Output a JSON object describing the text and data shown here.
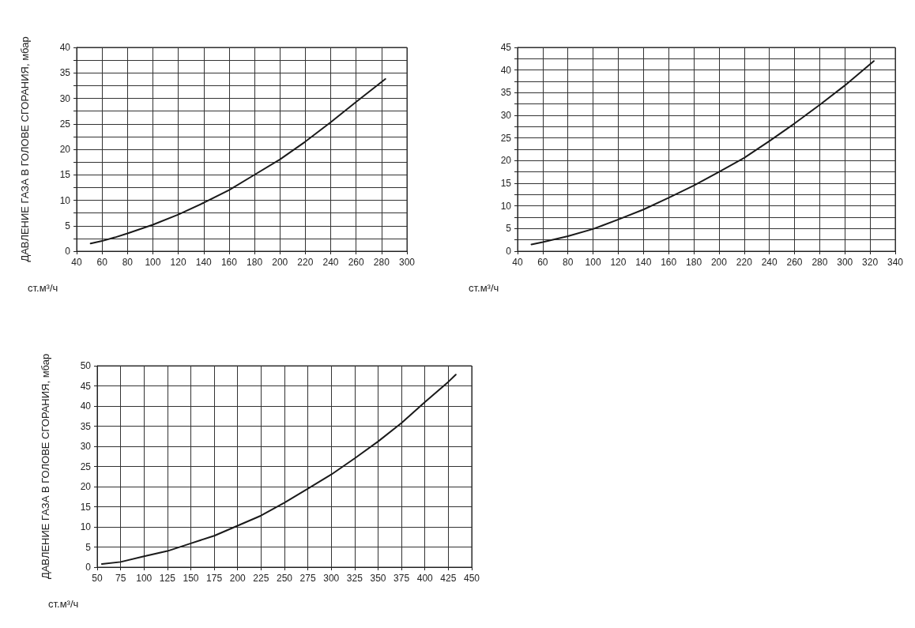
{
  "chart_data": [
    {
      "type": "line",
      "ylabel": "ДАВЛЕНИЕ ГАЗА В ГОЛОВЕ СГОРАНИЯ, мбар",
      "xlabel": "ст.м³/ч",
      "grid": true,
      "marker": "none",
      "line_style": "solid",
      "x": [
        51,
        60,
        70,
        80,
        100,
        120,
        140,
        160,
        180,
        200,
        220,
        240,
        260,
        283
      ],
      "series": [
        {
          "color": "#1a1a1a",
          "values": [
            1.5,
            2,
            2.7,
            3.5,
            5.2,
            7.2,
            9.5,
            12,
            15,
            18,
            21.5,
            25.3,
            29.3,
            33.8
          ]
        }
      ],
      "xlim": [
        40,
        300
      ],
      "xticks": [
        40,
        60,
        80,
        100,
        120,
        140,
        160,
        180,
        200,
        220,
        240,
        260,
        280,
        300
      ],
      "ylim": [
        0,
        40
      ],
      "yticks": [
        0,
        {
          "value": 2.5,
          "label": null
        },
        5,
        {
          "value": 7.5,
          "label": null
        },
        10,
        {
          "value": 12.5,
          "label": null
        },
        15,
        {
          "value": 17.5,
          "label": null
        },
        20,
        {
          "value": 22.5,
          "label": null
        },
        25,
        {
          "value": 27.5,
          "label": null
        },
        30,
        {
          "value": 32.5,
          "label": null
        },
        35,
        {
          "value": 37.5,
          "label": null
        },
        40
      ]
    },
    {
      "type": "line",
      "xlabel": "ст.м³/ч",
      "grid": true,
      "marker": "none",
      "line_style": "solid",
      "x": [
        51,
        60,
        80,
        100,
        120,
        140,
        160,
        180,
        200,
        220,
        240,
        260,
        280,
        300,
        323
      ],
      "series": [
        {
          "color": "#1a1a1a",
          "values": [
            1.5,
            2,
            3.3,
            4.9,
            7,
            9.2,
            11.8,
            14.5,
            17.5,
            20.6,
            24.3,
            28.2,
            32.3,
            36.6,
            42
          ]
        }
      ],
      "xlim": [
        40,
        340
      ],
      "xticks": [
        40,
        60,
        80,
        100,
        120,
        140,
        160,
        180,
        200,
        220,
        240,
        260,
        280,
        300,
        320,
        340
      ],
      "ylim": [
        0,
        45
      ],
      "yticks": [
        0,
        {
          "value": 2.5,
          "label": null
        },
        5,
        {
          "value": 7.5,
          "label": null
        },
        10,
        {
          "value": 12.5,
          "label": null
        },
        15,
        {
          "value": 17.5,
          "label": null
        },
        20,
        {
          "value": 22.5,
          "label": null
        },
        25,
        {
          "value": 27.5,
          "label": null
        },
        30,
        {
          "value": 32.5,
          "label": null
        },
        35,
        {
          "value": 37.5,
          "label": null
        },
        40,
        {
          "value": 42.5,
          "label": null
        },
        45
      ]
    },
    {
      "type": "line",
      "ylabel": "ДАВЛЕНИЕ ГАЗА В ГОЛОВЕ СГОРАНИЯ, мбар",
      "xlabel": "ст.м³/ч",
      "grid": true,
      "marker": "none",
      "line_style": "solid",
      "x": [
        55,
        75,
        100,
        125,
        150,
        175,
        200,
        225,
        250,
        275,
        300,
        325,
        350,
        375,
        400,
        425,
        433
      ],
      "series": [
        {
          "color": "#1a1a1a",
          "values": [
            0.8,
            1.3,
            2.7,
            4,
            5.9,
            7.8,
            10.3,
            12.8,
            16,
            19.5,
            23,
            27,
            31.2,
            35.8,
            41,
            46,
            47.8
          ]
        }
      ],
      "xlim": [
        50,
        450
      ],
      "xticks": [
        50,
        75,
        100,
        125,
        150,
        175,
        200,
        225,
        250,
        275,
        300,
        325,
        350,
        375,
        400,
        425,
        450
      ],
      "ylim": [
        0,
        50
      ],
      "yticks": [
        0,
        5,
        10,
        15,
        20,
        25,
        30,
        35,
        40,
        45,
        50
      ]
    }
  ]
}
